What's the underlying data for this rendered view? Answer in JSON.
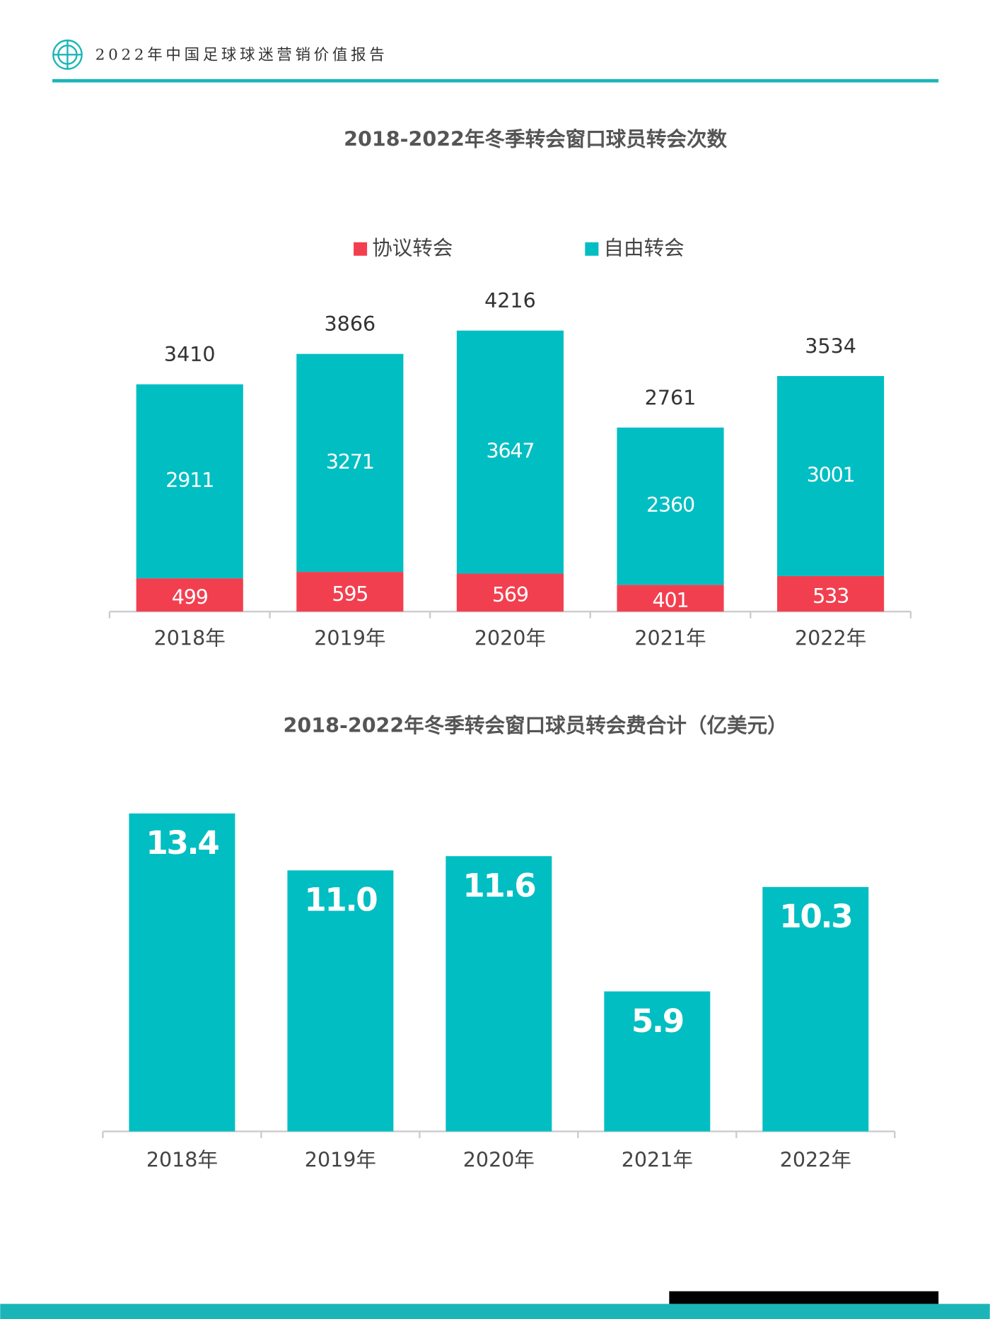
{
  "header": {
    "title": "2022年中国足球球迷营销价值报告"
  },
  "chart_data": [
    {
      "type": "stacked_bar",
      "title": "2018-2022年冬季转会窗口球员转会次数",
      "categories": [
        "2018年",
        "2019年",
        "2020年",
        "2021年",
        "2022年"
      ],
      "series": [
        {
          "name": "协议转会",
          "color": "#f23f4f",
          "values": [
            499,
            595,
            569,
            401,
            533
          ]
        },
        {
          "name": "自由转会",
          "color": "#00bec2",
          "values": [
            2911,
            3271,
            3647,
            2360,
            3001
          ]
        }
      ],
      "totals": [
        3410,
        3866,
        4216,
        2761,
        3534
      ]
    },
    {
      "type": "bar",
      "title": "2018-2022年冬季转会窗口球员转会费合计（亿美元）",
      "categories": [
        "2018年",
        "2019年",
        "2020年",
        "2021年",
        "2022年"
      ],
      "values": [
        13.4,
        11.0,
        11.6,
        5.9,
        10.3
      ],
      "value_labels": [
        "13.4",
        "11.0",
        "11.6",
        "5.9",
        "10.3"
      ],
      "color": "#00bec2"
    }
  ]
}
